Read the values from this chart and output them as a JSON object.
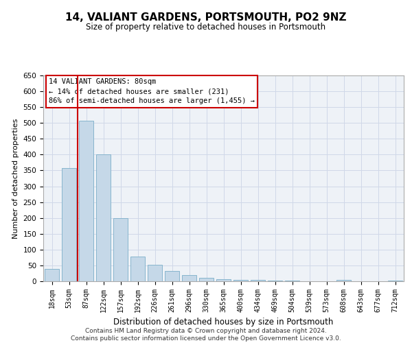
{
  "title": "14, VALIANT GARDENS, PORTSMOUTH, PO2 9NZ",
  "subtitle": "Size of property relative to detached houses in Portsmouth",
  "xlabel": "Distribution of detached houses by size in Portsmouth",
  "ylabel": "Number of detached properties",
  "footer_line1": "Contains HM Land Registry data © Crown copyright and database right 2024.",
  "footer_line2": "Contains public sector information licensed under the Open Government Licence v3.0.",
  "annotation_title": "14 VALIANT GARDENS: 80sqm",
  "annotation_line1": "← 14% of detached houses are smaller (231)",
  "annotation_line2": "86% of semi-detached houses are larger (1,455) →",
  "property_bin_index": 2,
  "bar_labels": [
    "18sqm",
    "53sqm",
    "87sqm",
    "122sqm",
    "157sqm",
    "192sqm",
    "226sqm",
    "261sqm",
    "296sqm",
    "330sqm",
    "365sqm",
    "400sqm",
    "434sqm",
    "469sqm",
    "504sqm",
    "539sqm",
    "573sqm",
    "608sqm",
    "643sqm",
    "677sqm",
    "712sqm"
  ],
  "bar_values": [
    38,
    358,
    507,
    400,
    200,
    78,
    53,
    33,
    20,
    10,
    7,
    5,
    5,
    3,
    2,
    0,
    0,
    4,
    0,
    0,
    3
  ],
  "bar_color": "#c5d8e8",
  "bar_edgecolor": "#7aaec8",
  "redline_color": "#cc0000",
  "annotation_box_color": "#cc0000",
  "grid_color": "#d0d8e8",
  "background_color": "#eef2f7",
  "ylim": [
    0,
    650
  ],
  "yticks": [
    0,
    50,
    100,
    150,
    200,
    250,
    300,
    350,
    400,
    450,
    500,
    550,
    600,
    650
  ]
}
